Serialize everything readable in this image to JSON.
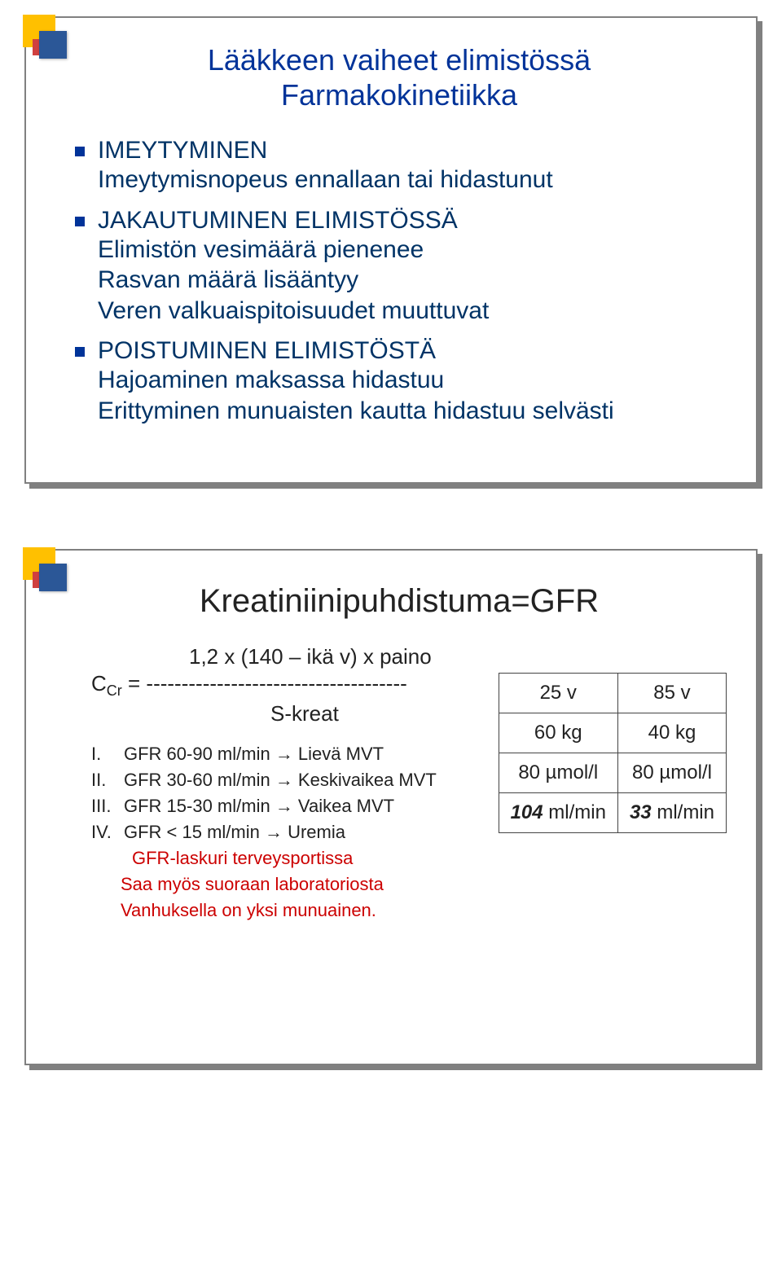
{
  "slide1": {
    "title_line1": "Lääkkeen vaiheet elimistössä",
    "title_line2": "Farmakokinetiikka",
    "items": [
      {
        "head": "IMEYTYMINEN",
        "subs": [
          "Imeytymisnopeus ennallaan tai hidastunut"
        ]
      },
      {
        "head": "JAKAUTUMINEN ELIMISTÖSSÄ",
        "subs": [
          "Elimistön vesimäärä pienenee",
          "Rasvan määrä lisääntyy",
          "Veren valkuaispitoisuudet muuttuvat"
        ]
      },
      {
        "head": "POISTUMINEN ELIMISTÖSTÄ",
        "subs": [
          "Hajoaminen maksassa hidastuu",
          "Erittyminen munuaisten kautta hidastuu selvästi"
        ]
      }
    ]
  },
  "slide2": {
    "title": "Kreatiniinipuhdistuma=GFR",
    "formula": {
      "numerator": "1,2 x (140 – ikä v) x paino",
      "lhs": "C",
      "lhs_sub": "Cr",
      "eq": " = ",
      "dashes": "-------------------------------------",
      "denominator": "S-kreat"
    },
    "gfr_rows": [
      {
        "rn": "I.",
        "text": "GFR 60-90 ml/min → Lievä MVT"
      },
      {
        "rn": "II.",
        "text": "GFR 30-60 ml/min → Keskivaikea MVT"
      },
      {
        "rn": "III.",
        "text": "GFR 15-30 ml/min → Vaikea MVT"
      },
      {
        "rn": "IV.",
        "text": "GFR < 15 ml/min → Uremia"
      }
    ],
    "red_lines": [
      "GFR-laskuri terveysportissa",
      "Saa myös suoraan laboratoriosta",
      "Vanhuksella on yksi munuainen."
    ],
    "table": {
      "rows": [
        [
          "25 v",
          "85 v"
        ],
        [
          "60 kg",
          "40 kg"
        ],
        [
          "80 µmol/l",
          "80 µmol/l"
        ],
        [
          "104 ml/min",
          "33 ml/min"
        ]
      ],
      "bold_row_index": 3,
      "bold_prefixes": [
        "104",
        "33"
      ],
      "bold_suffixes": [
        " ml/min",
        " ml/min"
      ]
    }
  }
}
